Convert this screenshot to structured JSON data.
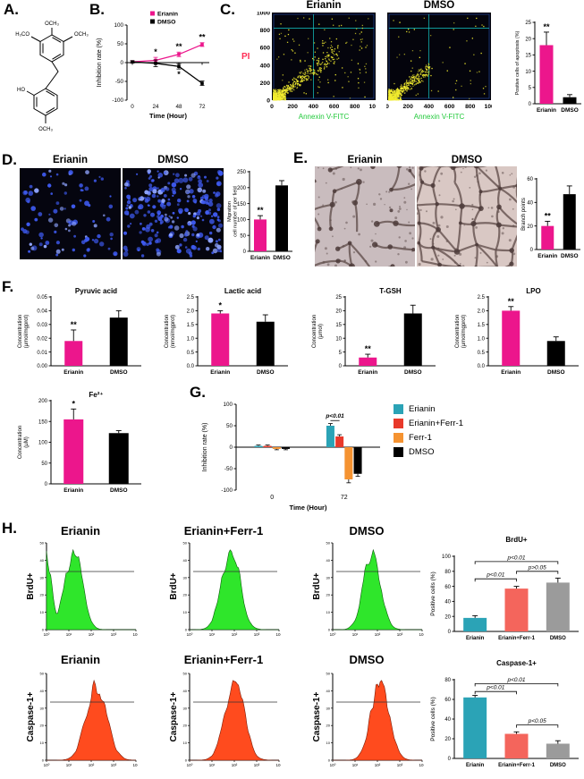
{
  "figure": {
    "panel_labels": {
      "A": "A.",
      "B": "B.",
      "C": "C.",
      "D": "D.",
      "E": "E.",
      "F": "F.",
      "G": "G.",
      "H": "H."
    }
  },
  "colors": {
    "pink": "#EC168C",
    "black": "#000000",
    "teal": "#2BA3B6",
    "red": "#E8392A",
    "salmon": "#F4655C",
    "orange": "#F59331",
    "gray": "#9B9B9B",
    "hist_green": "#2FE62B",
    "hist_orange": "#FF4B1E",
    "dot_yellow": "#F2EC2F",
    "annexin_green": "#22C93B",
    "pi_red": "#FF2D55",
    "nuclei_blue": "#3E5AF0"
  },
  "panels": {
    "A": {
      "molecule_labels": [
        "H₃CO",
        "OCH₃",
        "OCH₃",
        "HO",
        "OCH₃"
      ]
    },
    "C": {
      "titles": [
        "Erianin",
        "DMSO"
      ],
      "pi_label": "PI"
    },
    "D": {
      "titles": [
        "Erianin",
        "DMSO"
      ]
    },
    "E": {
      "titles": [
        "Erianin",
        "DMSO"
      ]
    },
    "G": {
      "legend": [
        {
          "label": "Erianin",
          "color": "#2BA3B6"
        },
        {
          "label": "Erianin+Ferr-1",
          "color": "#E8392A"
        },
        {
          "label": "Ferr-1",
          "color": "#F59331"
        },
        {
          "label": "DMSO",
          "color": "#000000"
        }
      ]
    },
    "H": {
      "col_titles": [
        "Erianin",
        "Erianin+Ferr-1",
        "DMSO"
      ]
    }
  },
  "images": {
    "imgMigrationErianin": {
      "type": "dots",
      "count": 90,
      "seed": 5
    },
    "imgMigrationDMSO": {
      "type": "dots",
      "count": 240,
      "seed": 9
    },
    "imgTubeErianin": {
      "type": "mesh",
      "keep": 0.45,
      "seed": 11,
      "bg": "#C9BCBE"
    },
    "imgTubeDMSO": {
      "type": "mesh",
      "keep": 0.88,
      "seed": 17,
      "bg": "#D9C8C4"
    }
  },
  "chart_data": [
    {
      "id": "chartB",
      "type": "line",
      "xlabel": "Time (Hour)",
      "ylabel": [
        "Inhibition rate (%)"
      ],
      "x": [
        0,
        24,
        48,
        72
      ],
      "xtick_labels": [
        "0",
        "24",
        "48",
        "72"
      ],
      "ylim": [
        -100,
        100
      ],
      "yticks": [
        -100,
        -50,
        0,
        50,
        100
      ],
      "ytick_labels": [
        "-100",
        "-50",
        "0",
        "50",
        "100"
      ],
      "series": [
        {
          "name": "Erianin",
          "color": "#EC168C",
          "values": [
            2,
            6,
            22,
            48
          ],
          "errors": [
            3,
            8,
            6,
            5
          ],
          "sig": [
            "",
            "*",
            "**",
            "**"
          ]
        },
        {
          "name": "DMSO",
          "color": "#000000",
          "values": [
            2,
            -2,
            -10,
            -55
          ],
          "errors": [
            3,
            9,
            7,
            6
          ],
          "sig": [
            "",
            "",
            "*",
            ""
          ]
        }
      ]
    },
    {
      "id": "scatterErianin",
      "type": "scatter",
      "xlabel": "Annexin V-FITC",
      "xlim": [
        0,
        1000
      ],
      "ylim": [
        0,
        1000
      ],
      "xticks": [
        0,
        200,
        400,
        600,
        800,
        1000
      ],
      "yticks": [
        0,
        200,
        400,
        600,
        800,
        1000
      ],
      "spread": 0.62,
      "sparse": 120,
      "seed": 7
    },
    {
      "id": "scatterDMSO",
      "type": "scatter",
      "xlabel": "Annexin V-FITC",
      "xlim": [
        0,
        1000
      ],
      "ylim": [
        0,
        1000
      ],
      "xticks": [
        0,
        200,
        400,
        600,
        800,
        1000
      ],
      "yticks": [],
      "spread": 0.42,
      "sparse": 55,
      "seed": 13
    },
    {
      "id": "chartC",
      "type": "bar",
      "ylabel": [
        "Positive cells of apoptosis (%)"
      ],
      "categories": [
        "Erianin",
        "DMSO"
      ],
      "values": [
        18,
        2
      ],
      "errors": [
        4,
        0.8
      ],
      "colors": [
        "#EC168C",
        "#000000"
      ],
      "sig": [
        "**",
        ""
      ],
      "ylim": [
        0,
        25
      ],
      "yticks": [
        0,
        5,
        10,
        15,
        20,
        25
      ],
      "ytick_labels": [
        "0",
        "5",
        "10",
        "15",
        "20",
        "25"
      ]
    },
    {
      "id": "chartD",
      "type": "bar",
      "ylabel": [
        "Migration",
        "cell number of per field"
      ],
      "categories": [
        "Erianin",
        "DMSO"
      ],
      "values": [
        100,
        207
      ],
      "errors": [
        12,
        15
      ],
      "colors": [
        "#EC168C",
        "#000000"
      ],
      "sig": [
        "**",
        ""
      ],
      "ylim": [
        0,
        250
      ],
      "yticks": [
        0,
        50,
        100,
        150,
        200,
        250
      ],
      "ytick_labels": [
        "0",
        "50",
        "100",
        "150",
        "200",
        "250"
      ]
    },
    {
      "id": "chartE",
      "type": "bar",
      "ylabel": [
        "Branch points"
      ],
      "categories": [
        "Erianin",
        "DMSO"
      ],
      "values": [
        20,
        47
      ],
      "errors": [
        4,
        7
      ],
      "colors": [
        "#EC168C",
        "#000000"
      ],
      "sig": [
        "**",
        ""
      ],
      "ylim": [
        0,
        60
      ],
      "yticks": [
        0,
        20,
        40,
        60
      ],
      "ytick_labels": [
        "0",
        "20",
        "40",
        "60"
      ]
    },
    {
      "id": "chartF1",
      "type": "bar",
      "title": "Pyruvic acid",
      "ylabel": [
        "Concentration",
        "(μmol/mgprot)"
      ],
      "categories": [
        "Erianin",
        "DMSO"
      ],
      "values": [
        0.018,
        0.035
      ],
      "errors": [
        0.008,
        0.005
      ],
      "colors": [
        "#EC168C",
        "#000000"
      ],
      "sig": [
        "**",
        ""
      ],
      "ylim": [
        0,
        0.05
      ],
      "yticks": [
        0,
        0.01,
        0.02,
        0.03,
        0.04,
        0.05
      ],
      "ytick_labels": [
        "0.00",
        "0.01",
        "0.02",
        "0.03",
        "0.04",
        "0.05"
      ]
    },
    {
      "id": "chartF2",
      "type": "bar",
      "title": "Lactic acid",
      "ylabel": [
        "Concentration",
        "(nmol/mgprot)"
      ],
      "categories": [
        "Erianin",
        "DMSO"
      ],
      "values": [
        1.9,
        1.6
      ],
      "errors": [
        0.1,
        0.25
      ],
      "colors": [
        "#EC168C",
        "#000000"
      ],
      "sig": [
        "*",
        ""
      ],
      "ylim": [
        0,
        2.5
      ],
      "yticks": [
        0,
        0.5,
        1,
        1.5,
        2,
        2.5
      ],
      "ytick_labels": [
        "0.0",
        "0.5",
        "1.0",
        "1.5",
        "2.0",
        "2.5"
      ]
    },
    {
      "id": "chartF3",
      "type": "bar",
      "title": "T-GSH",
      "ylabel": [
        "Concentration",
        "(μmol)"
      ],
      "categories": [
        "Erianin",
        "DMSO"
      ],
      "values": [
        3,
        19
      ],
      "errors": [
        1.2,
        3
      ],
      "colors": [
        "#EC168C",
        "#000000"
      ],
      "sig": [
        "**",
        ""
      ],
      "ylim": [
        0,
        25
      ],
      "yticks": [
        0,
        5,
        10,
        15,
        20,
        25
      ],
      "ytick_labels": [
        "0",
        "5",
        "10",
        "15",
        "20",
        "25"
      ]
    },
    {
      "id": "chartF4",
      "type": "bar",
      "title": "LPO",
      "ylabel": [
        "Concentration",
        "(μmol/mgprot)"
      ],
      "categories": [
        "Erianin",
        "DMSO"
      ],
      "values": [
        2,
        0.9
      ],
      "errors": [
        0.15,
        0.15
      ],
      "colors": [
        "#EC168C",
        "#000000"
      ],
      "sig": [
        "**",
        ""
      ],
      "ylim": [
        0,
        2.5
      ],
      "yticks": [
        0,
        0.5,
        1,
        1.5,
        2,
        2.5
      ],
      "ytick_labels": [
        "0.0",
        "0.5",
        "1.0",
        "1.5",
        "2.0",
        "2.5"
      ]
    },
    {
      "id": "chartF5",
      "type": "bar",
      "title": "Fe²⁺",
      "ylabel": [
        "Concentration",
        "(μM)"
      ],
      "categories": [
        "Erianin",
        "DMSO"
      ],
      "values": [
        155,
        122
      ],
      "errors": [
        25,
        6
      ],
      "colors": [
        "#EC168C",
        "#000000"
      ],
      "sig": [
        "*",
        ""
      ],
      "ylim": [
        0,
        200
      ],
      "yticks": [
        0,
        50,
        100,
        150,
        200
      ],
      "ytick_labels": [
        "0",
        "50",
        "100",
        "150",
        "200"
      ]
    },
    {
      "id": "chartG",
      "type": "groupbar",
      "xlabel": "Time (Hour)",
      "ylabel": [
        "Inhibition rate (%)"
      ],
      "categories": [
        "0",
        "72"
      ],
      "ylim": [
        -100,
        100
      ],
      "yticks": [
        -100,
        -50,
        0,
        50,
        100
      ],
      "ytick_labels": [
        "-100",
        "-50",
        "0",
        "50",
        "100"
      ],
      "series": [
        {
          "name": "Erianin",
          "color": "#2BA3B6",
          "values": [
            3,
            50
          ],
          "errors": [
            2,
            5
          ]
        },
        {
          "name": "Erianin+Ferr-1",
          "color": "#E8392A",
          "values": [
            3,
            25
          ],
          "errors": [
            2,
            4
          ]
        },
        {
          "name": "Ferr-1",
          "color": "#F59331",
          "values": [
            -4,
            -75
          ],
          "errors": [
            2,
            8
          ]
        },
        {
          "name": "DMSO",
          "color": "#000000",
          "values": [
            -4,
            -62
          ],
          "errors": [
            2,
            6
          ]
        }
      ],
      "annotation": {
        "label": "p<0.01",
        "group": 1,
        "a": 0,
        "b": 1,
        "y": 62
      }
    },
    {
      "id": "histB1",
      "type": "hist",
      "ylabel": "BrdU+",
      "color": "#2FE62B",
      "stroke": "#0B5A0B",
      "center": 0.3,
      "width": 0.13,
      "spike": true,
      "seed": 3,
      "xtick_labels": [
        "10⁰",
        "10¹",
        "10²",
        "10³",
        "10⁴"
      ],
      "yticks": [
        0,
        10,
        20,
        30,
        40,
        50
      ]
    },
    {
      "id": "histB2",
      "type": "hist",
      "ylabel": "BrdU+",
      "color": "#2FE62B",
      "stroke": "#0B5A0B",
      "center": 0.46,
      "width": 0.14,
      "spike": false,
      "seed": 4,
      "xtick_labels": [
        "10⁰",
        "10¹",
        "10²",
        "10³",
        "10⁴"
      ],
      "yticks": [
        0,
        10,
        20,
        30,
        40,
        50
      ]
    },
    {
      "id": "histB3",
      "type": "hist",
      "ylabel": "BrdU+",
      "color": "#2FE62B",
      "stroke": "#0B5A0B",
      "center": 0.44,
      "width": 0.13,
      "spike": false,
      "seed": 5,
      "xtick_labels": [
        "10⁰",
        "10¹",
        "10²",
        "10³",
        "10⁴"
      ],
      "yticks": [
        0,
        10,
        20,
        30,
        40,
        50
      ]
    },
    {
      "id": "histC1",
      "type": "hist",
      "ylabel": "Caspase-1+",
      "color": "#FF4B1E",
      "stroke": "#7A1C08",
      "center": 0.56,
      "width": 0.16,
      "spike": false,
      "seed": 6,
      "xtick_labels": [
        "10⁰",
        "10¹",
        "10²",
        "10³",
        "10⁴"
      ],
      "yticks": [
        0,
        10,
        20,
        30,
        40,
        50
      ]
    },
    {
      "id": "histC2",
      "type": "hist",
      "ylabel": "Caspase-1+",
      "color": "#FF4B1E",
      "stroke": "#7A1C08",
      "center": 0.5,
      "width": 0.15,
      "spike": false,
      "seed": 9,
      "xtick_labels": [
        "10⁰",
        "10¹",
        "10²",
        "10³",
        "10⁴"
      ],
      "yticks": [
        0,
        10,
        20,
        30,
        40,
        50
      ]
    },
    {
      "id": "histC3",
      "type": "hist",
      "ylabel": "Caspase-1+",
      "color": "#FF4B1E",
      "stroke": "#7A1C08",
      "center": 0.53,
      "width": 0.14,
      "spike": false,
      "seed": 8,
      "xtick_labels": [
        "10⁰",
        "10¹",
        "10²",
        "10³",
        "10⁴"
      ],
      "yticks": [
        0,
        10,
        20,
        30,
        40,
        50
      ]
    },
    {
      "id": "chartH1",
      "type": "bar",
      "title": "BrdU+",
      "ylabel": [
        "Positive cells (%)"
      ],
      "categories": [
        "Erianin",
        "Erianin+Ferr-1",
        "DMSO"
      ],
      "values": [
        18,
        57,
        65
      ],
      "errors": [
        3,
        3,
        6
      ],
      "colors": [
        "#2BA3B6",
        "#F4655C",
        "#9B9B9B"
      ],
      "sig": [
        "",
        "",
        ""
      ],
      "ylim": [
        0,
        100
      ],
      "yticks": [
        0,
        20,
        40,
        60,
        80,
        100
      ],
      "ytick_labels": [
        "0",
        "20",
        "40",
        "60",
        "80",
        "100"
      ],
      "brackets": [
        {
          "a": 0,
          "b": 1,
          "y": 70,
          "label": "p<0.01"
        },
        {
          "a": 1,
          "b": 2,
          "y": 80,
          "label": "p>0.05"
        },
        {
          "a": 0,
          "b": 2,
          "y": 93,
          "label": "p<0.01"
        }
      ]
    },
    {
      "id": "chartH2",
      "type": "bar",
      "title": "Caspase-1+",
      "ylabel": [
        "Positive cells (%)"
      ],
      "categories": [
        "Erianin",
        "Erianin+Ferr-1",
        "DMSO"
      ],
      "values": [
        62,
        25,
        15
      ],
      "errors": [
        2,
        2,
        3
      ],
      "colors": [
        "#2BA3B6",
        "#F4655C",
        "#9B9B9B"
      ],
      "sig": [
        "",
        "",
        ""
      ],
      "ylim": [
        0,
        80
      ],
      "yticks": [
        0,
        20,
        40,
        60,
        80
      ],
      "ytick_labels": [
        "0",
        "20",
        "40",
        "60",
        "80"
      ],
      "brackets": [
        {
          "a": 0,
          "b": 1,
          "y": 68,
          "label": "p<0.01"
        },
        {
          "a": 1,
          "b": 2,
          "y": 34,
          "label": "p<0.05"
        },
        {
          "a": 0,
          "b": 2,
          "y": 76,
          "label": "p<0.01"
        }
      ]
    }
  ]
}
